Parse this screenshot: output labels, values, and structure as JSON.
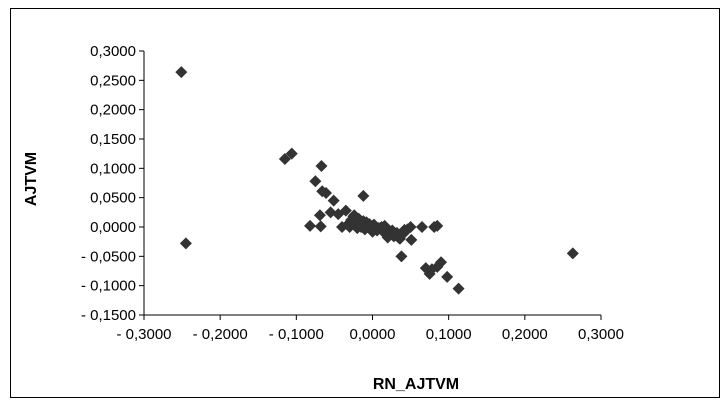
{
  "chart_data": {
    "type": "scatter",
    "title": "",
    "xlabel": "RN_AJTVM",
    "ylabel": "AJTVM",
    "xlim": [
      -0.3,
      0.3
    ],
    "ylim": [
      -0.15,
      0.3
    ],
    "x_ticks": [
      "- 0,3000",
      "- 0,2000",
      "- 0,1000",
      "0,0000",
      "0,1000",
      "0,2000",
      "0,3000"
    ],
    "y_ticks": [
      "0,3000",
      "0,2500",
      "0,2000",
      "0,1500",
      "0,1000",
      "0,0500",
      "0,0000",
      "- 0,0500",
      "- 0,1000",
      "- 0,1500"
    ],
    "grid": false,
    "legend": "none",
    "marker": "diamond",
    "marker_color": "#333333",
    "series": [
      {
        "points": [
          [
            -0.251,
            0.264
          ],
          [
            -0.245,
            -0.028
          ],
          [
            -0.115,
            0.116
          ],
          [
            -0.106,
            0.125
          ],
          [
            -0.067,
            0.104
          ],
          [
            -0.075,
            0.078
          ],
          [
            -0.066,
            0.061
          ],
          [
            -0.061,
            0.058
          ],
          [
            -0.051,
            0.045
          ],
          [
            -0.012,
            0.053
          ],
          [
            -0.069,
            0.02
          ],
          [
            -0.055,
            0.025
          ],
          [
            -0.045,
            0.022
          ],
          [
            -0.082,
            0.002
          ],
          [
            -0.068,
            0.001
          ],
          [
            -0.035,
            0.028
          ],
          [
            -0.025,
            0.018
          ],
          [
            -0.018,
            0.014
          ],
          [
            -0.012,
            0.01
          ],
          [
            -0.008,
            0.008
          ],
          [
            -0.004,
            0.005
          ],
          [
            0.0,
            0.002
          ],
          [
            0.004,
            0.0
          ],
          [
            0.008,
            -0.002
          ],
          [
            0.012,
            -0.005
          ],
          [
            0.018,
            -0.008
          ],
          [
            0.024,
            -0.01
          ],
          [
            0.03,
            -0.014
          ],
          [
            0.036,
            -0.02
          ],
          [
            0.038,
            -0.05
          ],
          [
            0.042,
            -0.005
          ],
          [
            0.05,
            0.0
          ],
          [
            0.051,
            -0.022
          ],
          [
            0.065,
            0.0
          ],
          [
            0.07,
            -0.07
          ],
          [
            0.075,
            -0.08
          ],
          [
            0.078,
            -0.072
          ],
          [
            0.081,
            0.0
          ],
          [
            0.085,
            0.002
          ],
          [
            0.085,
            -0.068
          ],
          [
            0.09,
            -0.06
          ],
          [
            0.098,
            -0.085
          ],
          [
            0.113,
            -0.105
          ],
          [
            0.263,
            -0.045
          ],
          [
            -0.04,
            0.0
          ],
          [
            -0.032,
            0.005
          ],
          [
            -0.028,
            0.012
          ],
          [
            -0.022,
            0.008
          ],
          [
            -0.02,
            -0.002
          ],
          [
            -0.015,
            0.0
          ],
          [
            -0.01,
            -0.004
          ],
          [
            -0.006,
            0.002
          ],
          [
            -0.002,
            -0.003
          ],
          [
            0.002,
            0.004
          ],
          [
            0.006,
            -0.006
          ],
          [
            0.01,
            -0.002
          ],
          [
            0.014,
            -0.008
          ],
          [
            0.016,
            0.002
          ],
          [
            0.02,
            -0.004
          ],
          [
            0.022,
            -0.012
          ],
          [
            0.026,
            -0.006
          ],
          [
            0.028,
            -0.016
          ],
          [
            0.032,
            -0.01
          ],
          [
            0.034,
            -0.018
          ],
          [
            0.04,
            -0.012
          ],
          [
            0.046,
            -0.004
          ],
          [
            -0.03,
            0.0
          ],
          [
            -0.024,
            0.02
          ],
          [
            -0.016,
            0.006
          ],
          [
            0.0,
            -0.008
          ],
          [
            0.012,
            0.0
          ],
          [
            0.02,
            -0.018
          ]
        ]
      }
    ]
  }
}
